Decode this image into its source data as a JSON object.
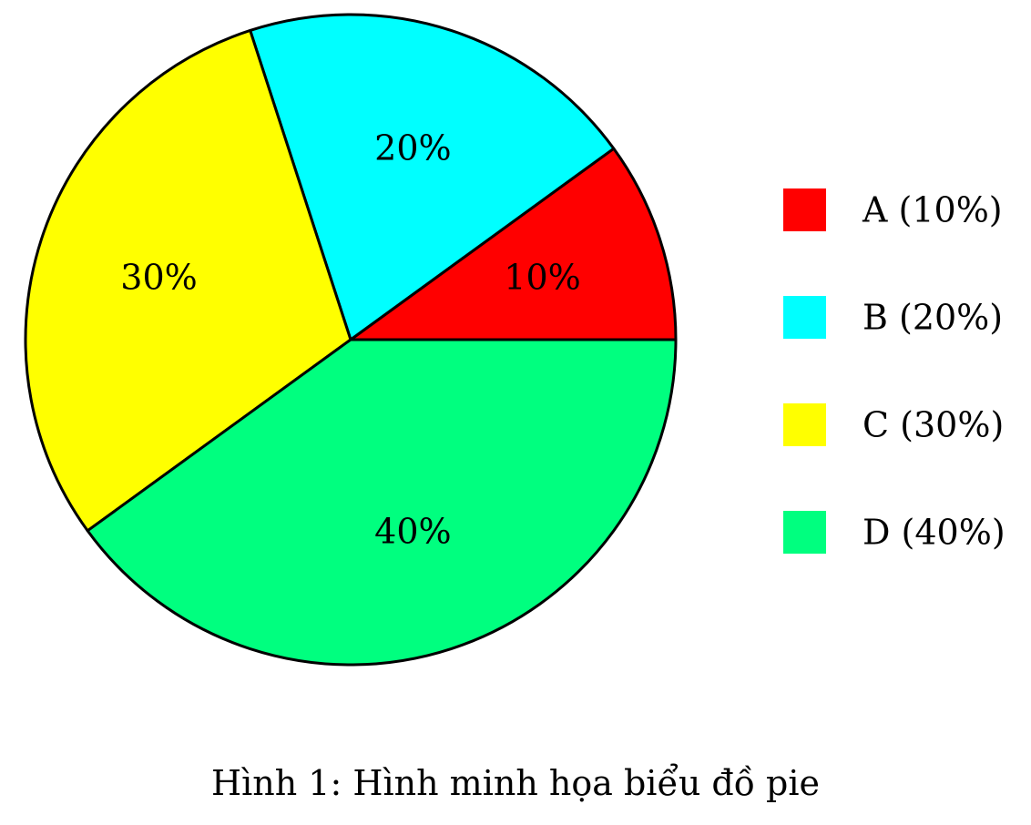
{
  "chart_data": {
    "type": "pie",
    "categories": [
      "A",
      "B",
      "C",
      "D"
    ],
    "values": [
      10,
      20,
      30,
      40
    ],
    "slice_labels": [
      "10%",
      "20%",
      "30%",
      "40%"
    ],
    "legend_entries": [
      "A (10%)",
      "B (20%)",
      "C (30%)",
      "D (40%)"
    ],
    "colors": [
      "#ff0000",
      "#00ffff",
      "#ffff00",
      "#00ff7f"
    ],
    "start_angle_deg": 0,
    "direction": "counterclockwise",
    "legend_placement": "right"
  },
  "caption": "Hình 1: Hình minh họa biểu đồ pie"
}
